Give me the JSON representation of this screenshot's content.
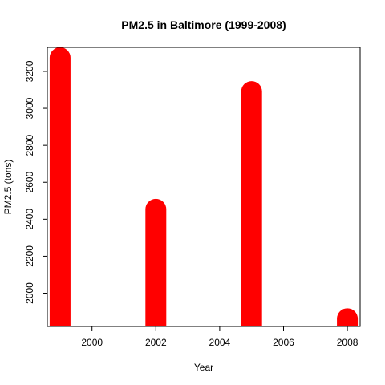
{
  "chart_data": {
    "type": "bar",
    "title": "PM2.5 in Baltimore (1999-2008)",
    "xlabel": "Year",
    "ylabel": "PM2.5 (tons)",
    "x": [
      1999,
      2002,
      2005,
      2008
    ],
    "values": [
      3274,
      2454,
      3091,
      1862
    ],
    "xlim": [
      1998.6,
      2008.4
    ],
    "ylim": [
      1820,
      3330
    ],
    "xticks": [
      2000,
      2002,
      2004,
      2006,
      2008
    ],
    "yticks": [
      2000,
      2200,
      2400,
      2600,
      2800,
      3000,
      3200
    ],
    "bar_color": "#ff0000",
    "grid": false,
    "legend": "none"
  }
}
